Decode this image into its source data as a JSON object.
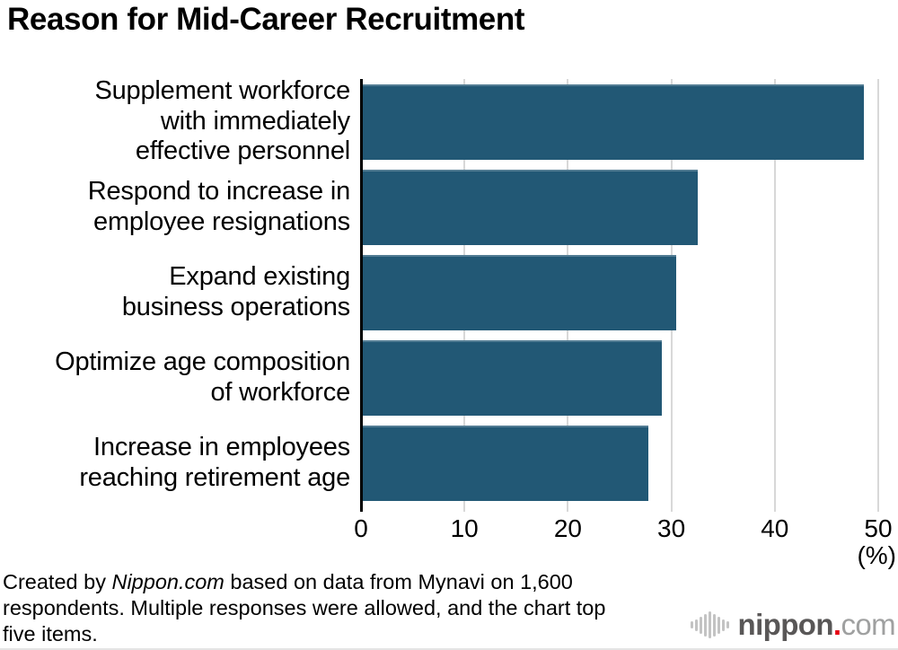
{
  "title": "Reason for Mid-Career Recruitment",
  "chart_data": {
    "type": "bar",
    "orientation": "horizontal",
    "title": "Reason for Mid-Career Recruitment",
    "categories": [
      "Supplement workforce with immediately effective personnel",
      "Respond to increase in employee resignations",
      "Expand existing business operations",
      "Optimize age composition of workforce",
      "Increase in employees reaching retirement age"
    ],
    "categories_lines": [
      [
        "Supplement workforce",
        "with immediately",
        "effective personnel"
      ],
      [
        "Respond to increase in",
        "employee resignations"
      ],
      [
        "Expand existing",
        "business operations"
      ],
      [
        "Optimize age composition",
        "of workforce"
      ],
      [
        "Increase in employees",
        "reaching retirement age"
      ]
    ],
    "values": [
      48.4,
      32.4,
      30.3,
      28.9,
      27.6
    ],
    "unit": "%",
    "xlabel": "(%)",
    "ylabel": "",
    "xticks": [
      0,
      10,
      20,
      30,
      40,
      50
    ],
    "xlim": [
      0,
      50
    ],
    "grid": true,
    "legend": false,
    "bar_color": "#225875",
    "gridline_color": "#d8d8d8",
    "axis_color": "#000000"
  },
  "footer": {
    "line1_prefix": "Created by ",
    "line1_italic": "Nippon.com",
    "line1_rest": " based on data from Mynavi on 1,600",
    "line2": "respondents. Multiple responses were allowed, and the chart top",
    "line3": "five items."
  },
  "logo": {
    "icon": "soundwave-icon",
    "name": "nippon",
    "dot": ".",
    "tld": "com",
    "name_color": "#595757",
    "dot_color": "#e60012",
    "tld_color": "#9fa0a0"
  }
}
